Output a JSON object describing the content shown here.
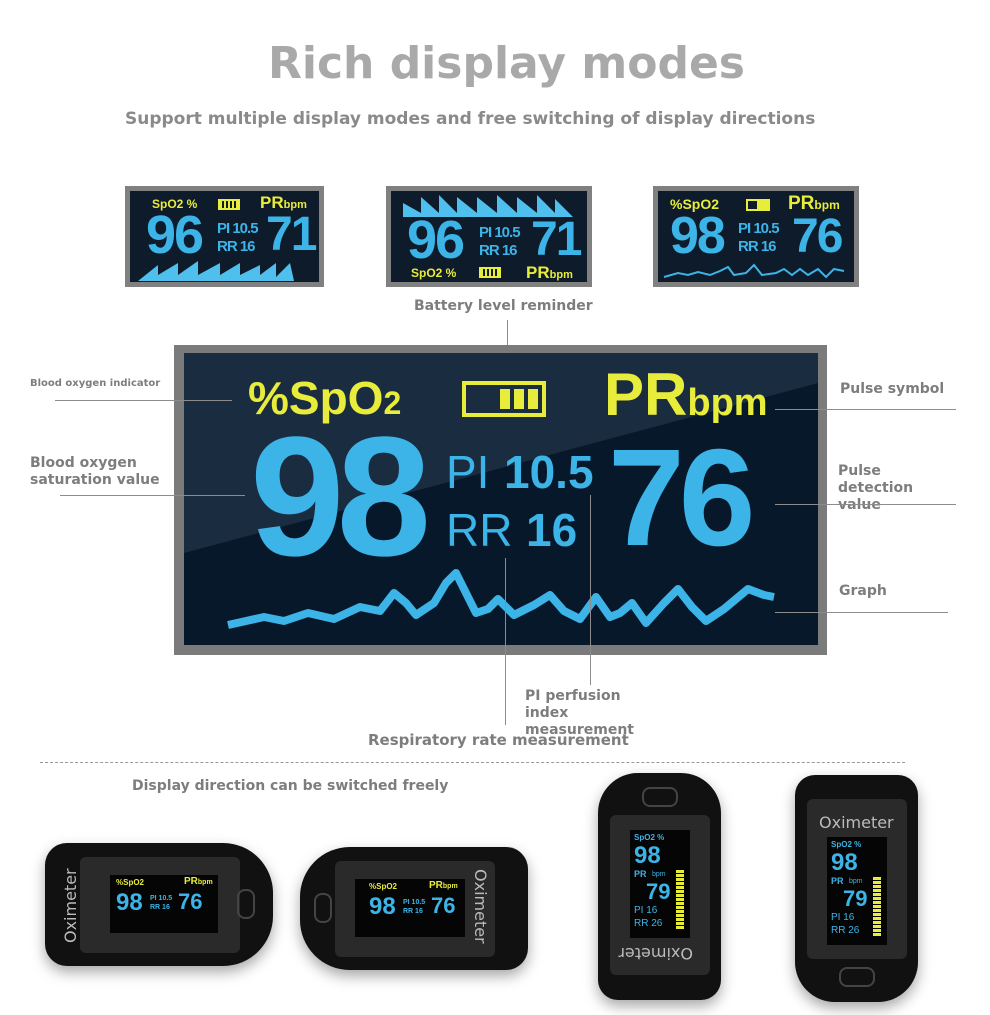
{
  "title": "Rich display modes",
  "subtitle": "Support multiple display modes and free switching of display directions",
  "small_screens": [
    {
      "spo2_label": "SpO2  %",
      "pr_label": "PR",
      "bpm": "bpm",
      "spo2": "96",
      "pi": "PI 10.5",
      "rr": "RR 16",
      "pr": "71",
      "graph": "triangle-wave-bottom"
    },
    {
      "spo2_label": "SpO2  %",
      "pr_label": "PR",
      "bpm": "bpm",
      "spo2": "96",
      "pi": "PI 10.5",
      "rr": "RR 16",
      "pr": "71",
      "graph": "triangle-wave-top"
    },
    {
      "spo2_label": "%SpO2",
      "pr_label": "PR",
      "bpm": "bpm",
      "spo2": "98",
      "pi": "PI 10.5",
      "rr": "RR 16",
      "pr": "76",
      "graph": "pulse-line"
    }
  ],
  "main_screen": {
    "spo2_label": "%SpO",
    "spo2_sub": "2",
    "pr_label": "PR",
    "bpm": "bpm",
    "spo2": "98",
    "pi_label": "PI",
    "pi": "10.5",
    "rr_label": "RR",
    "rr": "16",
    "pr": "76"
  },
  "annotations": {
    "battery": "Battery level reminder",
    "blood_oxygen_indicator": "Blood oxygen indicator",
    "saturation_value": "Blood oxygen saturation value",
    "pulse_symbol": "Pulse symbol",
    "pulse_value": "Pulse detection value",
    "graph": "Graph",
    "pi": "PI perfusion index measurement",
    "rr": "Respiratory rate measurement"
  },
  "display_direction": "Display direction can be switched freely",
  "devices": {
    "brand": "Oximeter",
    "horizontal": {
      "spo2_label": "%SpO2",
      "pr_label": "PR",
      "bpm": "bpm",
      "spo2": "98",
      "pi": "PI 10.5",
      "rr": "RR 16",
      "pr": "76"
    },
    "vertical": {
      "spo2_label": "SpO2 %",
      "spo2": "98",
      "pr_label": "PR",
      "bpm": "bpm",
      "pr": "79",
      "pi": "PI  16",
      "rr": "RR 26"
    }
  },
  "colors": {
    "yellow": "#e8ec3a",
    "blue": "#3cb4e8",
    "screen": "#07182a",
    "frame": "#7b7b7b"
  }
}
